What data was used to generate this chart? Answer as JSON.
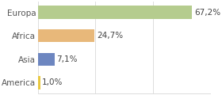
{
  "categories": [
    "Europa",
    "Africa",
    "Asia",
    "America"
  ],
  "values": [
    67.2,
    24.7,
    7.1,
    1.0
  ],
  "labels": [
    "67,2%",
    "24,7%",
    "7,1%",
    "1,0%"
  ],
  "bar_colors": [
    "#b5cc8e",
    "#e8b87a",
    "#6d86c0",
    "#e8c840"
  ],
  "background_color": "#ffffff",
  "grid_color": "#dddddd",
  "xlim": [
    0,
    75
  ],
  "gridlines": [
    0,
    25,
    50,
    75
  ],
  "label_fontsize": 7.5,
  "tick_fontsize": 7.5,
  "bar_height": 0.55
}
